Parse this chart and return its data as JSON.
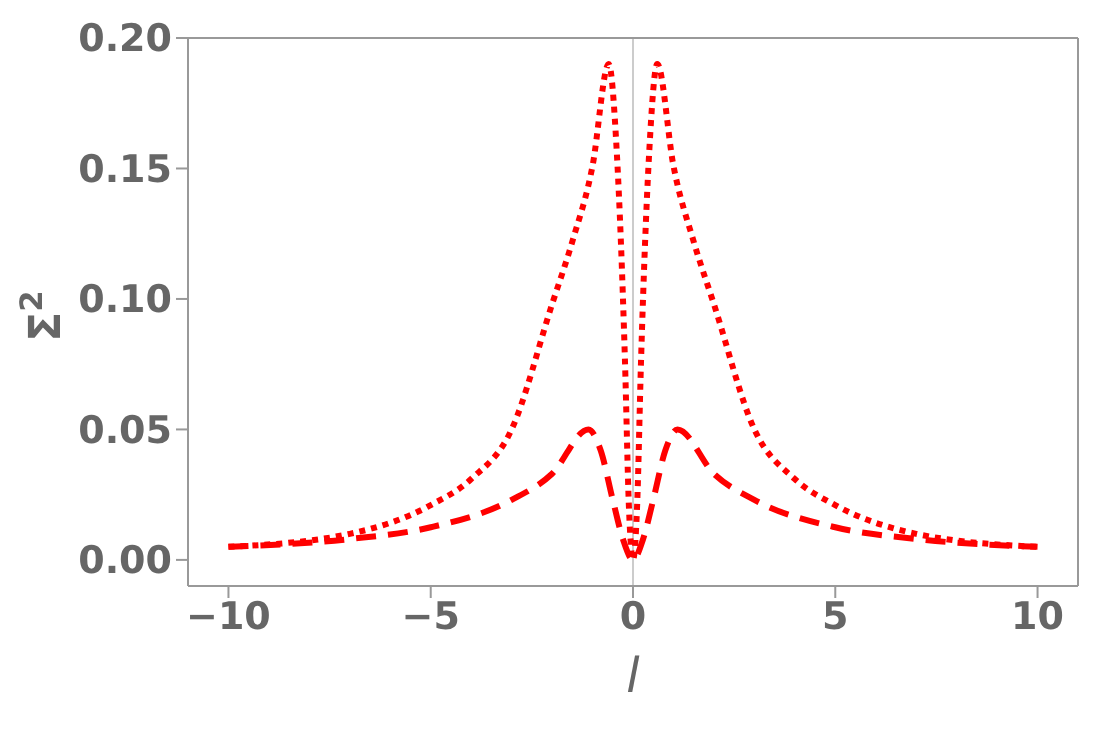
{
  "chart_data": {
    "type": "line",
    "xlabel": "l",
    "ylabel": "Σ$^{2}$",
    "xlim": [
      -11,
      11
    ],
    "ylim": [
      -0.01,
      0.2
    ],
    "xticks": [
      {
        "value": -10,
        "label": "−10"
      },
      {
        "value": -5,
        "label": "−5"
      },
      0,
      5,
      10
    ],
    "yticks": [
      {
        "value": 0,
        "label": "0.00"
      },
      {
        "value": 0.05,
        "label": "0.05"
      },
      {
        "value": 0.1,
        "label": "0.10"
      },
      {
        "value": 0.15,
        "label": "0.15"
      },
      {
        "value": 0.2,
        "label": "0.20"
      }
    ],
    "marker": "none",
    "ref_lines": [
      {
        "axis": "x",
        "value": 0,
        "color": "#cccccc"
      }
    ],
    "series": [
      {
        "color": "#ff0000",
        "line_style": "dotted",
        "x": [
          -10,
          -7,
          -5,
          -4,
          -3,
          -2,
          -1.5,
          -1,
          -0.6,
          -0.4,
          -0.2,
          -0.1,
          0,
          0.1,
          0.2,
          0.4,
          0.6,
          1,
          1.5,
          2,
          3,
          4,
          5,
          7,
          10
        ],
        "values": [
          0.005,
          0.01,
          0.021,
          0.031,
          0.05,
          0.098,
          0.122,
          0.151,
          0.19,
          0.156,
          0.077,
          0.02,
          0,
          0.02,
          0.077,
          0.156,
          0.19,
          0.151,
          0.122,
          0.098,
          0.05,
          0.031,
          0.021,
          0.01,
          0.005
        ]
      },
      {
        "color": "#ff0000",
        "line_style": "dashed",
        "x": [
          -10,
          -7,
          -5,
          -3,
          -2,
          -1.1,
          -0.8,
          -0.5,
          -0.25,
          0,
          0.25,
          0.5,
          0.8,
          1.1,
          2,
          3,
          5,
          7,
          10
        ],
        "values": [
          0.005,
          0.008,
          0.0125,
          0.023,
          0.033,
          0.05,
          0.042,
          0.023,
          0.008,
          0,
          0.008,
          0.023,
          0.042,
          0.05,
          0.033,
          0.023,
          0.0125,
          0.008,
          0.005
        ]
      }
    ]
  }
}
